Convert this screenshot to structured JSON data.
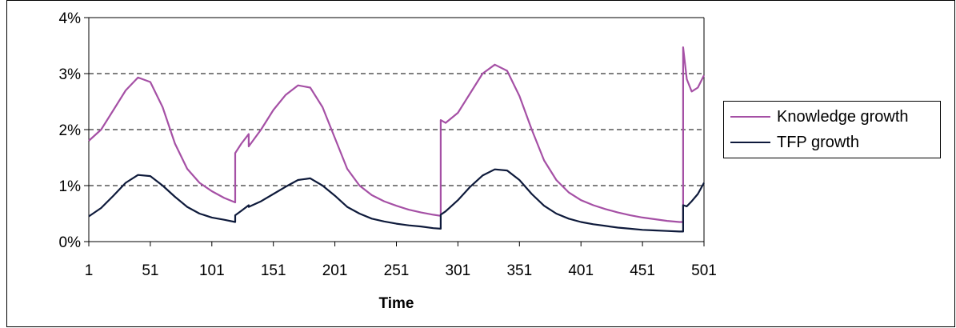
{
  "chart_data": {
    "type": "line",
    "title": "",
    "xlabel": "Time",
    "ylabel": "",
    "xlim": [
      1,
      501
    ],
    "ylim": [
      0,
      4
    ],
    "xticks": [
      "1",
      "51",
      "101",
      "151",
      "201",
      "251",
      "301",
      "351",
      "401",
      "451",
      "501"
    ],
    "yticks": [
      "0%",
      "1%",
      "2%",
      "3%",
      "4%"
    ],
    "grid": "horizontal dashed at 1%, 2%, 3%",
    "legend_position": "right",
    "series": [
      {
        "name": "Knowledge growth",
        "color": "#a550a5",
        "x": [
          1,
          11,
          21,
          31,
          41,
          51,
          61,
          71,
          81,
          91,
          101,
          111,
          120,
          120,
          125,
          131,
          131,
          141,
          151,
          161,
          171,
          181,
          191,
          201,
          211,
          221,
          231,
          241,
          251,
          261,
          271,
          281,
          287,
          287,
          291,
          301,
          311,
          321,
          331,
          341,
          351,
          361,
          371,
          381,
          391,
          401,
          411,
          421,
          431,
          441,
          451,
          461,
          471,
          481,
          484,
          484,
          487,
          491,
          496,
          501
        ],
        "y": [
          1.8,
          2.0,
          2.35,
          2.7,
          2.93,
          2.85,
          2.4,
          1.75,
          1.3,
          1.05,
          0.9,
          0.78,
          0.7,
          1.58,
          1.75,
          1.92,
          1.7,
          2.0,
          2.35,
          2.62,
          2.79,
          2.75,
          2.4,
          1.85,
          1.3,
          1.0,
          0.83,
          0.72,
          0.64,
          0.57,
          0.52,
          0.48,
          0.46,
          2.17,
          2.12,
          2.3,
          2.65,
          3.0,
          3.16,
          3.05,
          2.6,
          2.0,
          1.45,
          1.1,
          0.88,
          0.74,
          0.65,
          0.58,
          0.52,
          0.47,
          0.43,
          0.4,
          0.37,
          0.35,
          0.35,
          3.47,
          2.9,
          2.68,
          2.75,
          2.97
        ]
      },
      {
        "name": "TFP growth",
        "color": "#0e1a3b",
        "x": [
          1,
          11,
          21,
          31,
          41,
          51,
          61,
          71,
          81,
          91,
          101,
          111,
          120,
          120,
          125,
          131,
          131,
          141,
          151,
          161,
          171,
          181,
          191,
          201,
          211,
          221,
          231,
          241,
          251,
          261,
          271,
          281,
          287,
          287,
          291,
          301,
          311,
          321,
          331,
          341,
          351,
          361,
          371,
          381,
          391,
          401,
          411,
          421,
          431,
          441,
          451,
          461,
          471,
          481,
          484,
          484,
          487,
          491,
          496,
          501
        ],
        "y": [
          0.45,
          0.6,
          0.82,
          1.05,
          1.19,
          1.17,
          1.0,
          0.8,
          0.62,
          0.5,
          0.43,
          0.39,
          0.35,
          0.47,
          0.55,
          0.65,
          0.62,
          0.72,
          0.85,
          0.98,
          1.1,
          1.13,
          1.0,
          0.82,
          0.62,
          0.5,
          0.41,
          0.36,
          0.32,
          0.29,
          0.27,
          0.24,
          0.23,
          0.48,
          0.54,
          0.74,
          0.98,
          1.18,
          1.29,
          1.27,
          1.1,
          0.85,
          0.64,
          0.5,
          0.41,
          0.35,
          0.31,
          0.28,
          0.25,
          0.23,
          0.21,
          0.2,
          0.19,
          0.18,
          0.18,
          0.65,
          0.63,
          0.72,
          0.85,
          1.05
        ]
      }
    ]
  }
}
